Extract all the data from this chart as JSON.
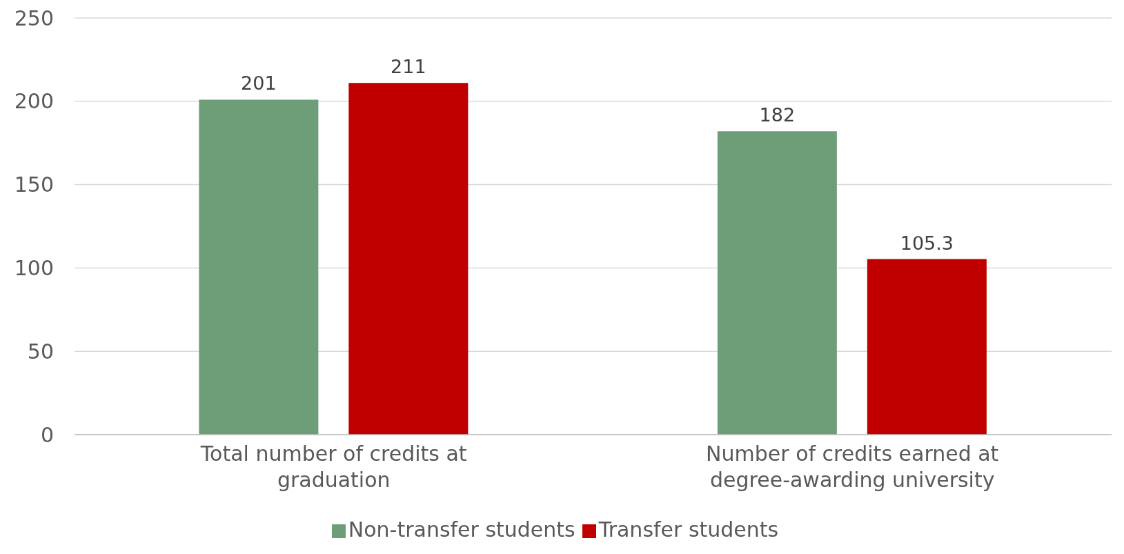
{
  "chart_data": {
    "type": "bar",
    "categories": [
      "Total number of credits at graduation",
      "Number of credits earned at degree-awarding university"
    ],
    "series": [
      {
        "name": "Non-transfer students",
        "color": "#6e9e78",
        "values": [
          201,
          182
        ]
      },
      {
        "name": "Transfer students",
        "color": "#c00000",
        "values": [
          211,
          105.3
        ]
      }
    ],
    "ylim": [
      0,
      250
    ],
    "yticks": [
      0,
      50,
      100,
      150,
      200,
      250
    ],
    "grid": "y",
    "legend": "bottom",
    "data_labels": true
  }
}
